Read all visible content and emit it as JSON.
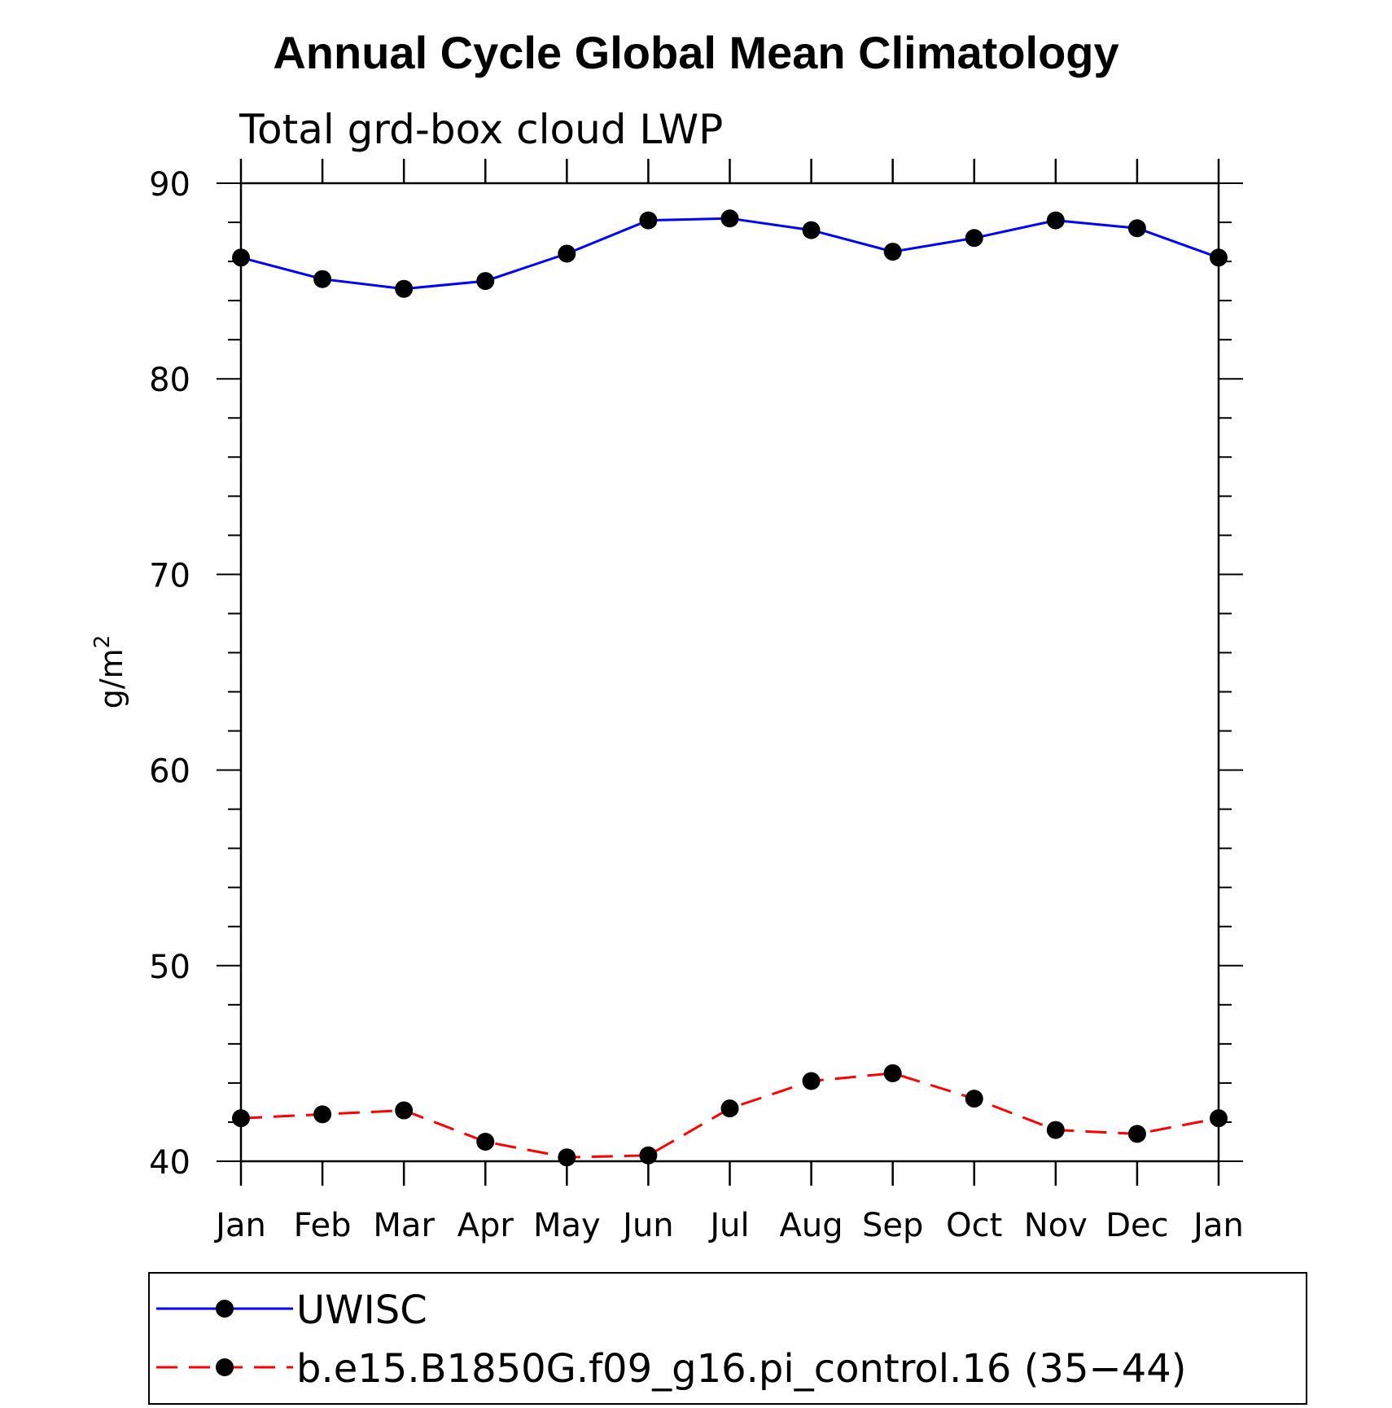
{
  "chart_data": {
    "type": "line",
    "title": "Annual Cycle Global Mean Climatology",
    "subtitle": "Total grd-box cloud LWP",
    "xlabel": "",
    "ylabel": "g/m",
    "ylabel_sup": "2",
    "categories": [
      "Jan",
      "Feb",
      "Mar",
      "Apr",
      "May",
      "Jun",
      "Jul",
      "Aug",
      "Sep",
      "Oct",
      "Nov",
      "Dec",
      "Jan"
    ],
    "ylim": [
      40,
      90
    ],
    "yticks": [
      "40",
      "50",
      "60",
      "70",
      "80",
      "90"
    ],
    "series": [
      {
        "name": "UWISC",
        "color": "#0000ff",
        "dash": "solid",
        "values": [
          86.2,
          85.1,
          84.6,
          85.0,
          86.4,
          88.1,
          88.2,
          87.6,
          86.5,
          87.2,
          88.1,
          87.7,
          86.2
        ]
      },
      {
        "name": "b.e15.B1850G.f09_g16.pi_control.16 (35−44)",
        "color": "#ff0000",
        "dash": "dashed",
        "values": [
          42.2,
          42.4,
          42.6,
          41.0,
          40.2,
          40.3,
          42.7,
          44.1,
          44.5,
          43.2,
          41.6,
          41.4,
          42.2
        ]
      }
    ]
  }
}
